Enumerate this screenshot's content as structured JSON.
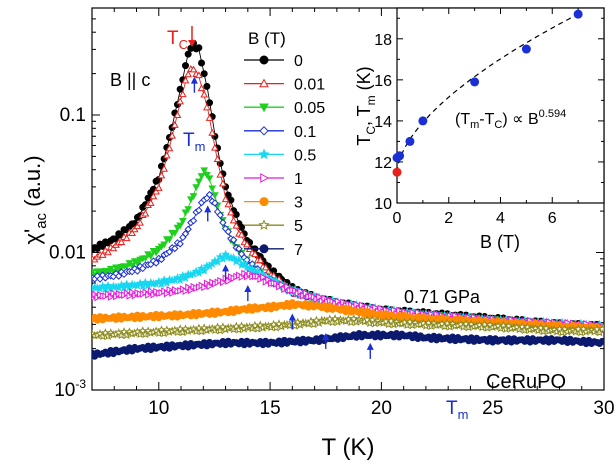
{
  "chart_data": [
    {
      "type": "scatter",
      "xlabel": "T (K)",
      "ylabel_main": "χ'",
      "ylabel_sub": "ac",
      "ylabel_unit": " (a.u.)",
      "yscale": "log",
      "xlim": [
        7,
        30
      ],
      "ylim": [
        0.001,
        0.6
      ],
      "x_ticks": [
        10,
        15,
        20,
        25,
        30
      ],
      "y_ticks": [
        {
          "value": 0.001,
          "base": "10",
          "exp": "-3"
        },
        {
          "value": 0.01,
          "label": "0.01"
        },
        {
          "value": 0.1,
          "label": "0.1"
        }
      ],
      "legend_title": "B (T)",
      "legend_placement": "top-center",
      "series": [
        {
          "name": "0",
          "color": "#000000",
          "marker": "circle-filled",
          "x": [
            7,
            8,
            9,
            10,
            10.5,
            11,
            11.3,
            11.5,
            11.8,
            12.2,
            12.6,
            13,
            13.5,
            14,
            15,
            16,
            17,
            18,
            20,
            22,
            25,
            28,
            30
          ],
          "y": [
            0.0105,
            0.0125,
            0.017,
            0.035,
            0.07,
            0.16,
            0.27,
            0.33,
            0.3,
            0.15,
            0.06,
            0.03,
            0.018,
            0.012,
            0.0075,
            0.0055,
            0.0047,
            0.0043,
            0.0038,
            0.0036,
            0.0033,
            0.003,
            0.0029
          ]
        },
        {
          "name": "0.01",
          "color": "#e8201c",
          "marker": "triangle-open",
          "x": [
            7,
            8,
            9,
            10,
            10.5,
            11,
            11.3,
            11.5,
            11.8,
            12.2,
            12.6,
            13,
            13.5,
            14,
            15,
            16,
            18,
            20,
            25,
            30
          ],
          "y": [
            0.0088,
            0.011,
            0.015,
            0.03,
            0.06,
            0.13,
            0.2,
            0.22,
            0.19,
            0.11,
            0.05,
            0.025,
            0.015,
            0.011,
            0.007,
            0.0052,
            0.0042,
            0.0037,
            0.0032,
            0.0028
          ]
        },
        {
          "name": "0.05",
          "color": "#1fd01f",
          "marker": "triangle-down-filled",
          "x": [
            7,
            8,
            9,
            10,
            11,
            11.5,
            11.9,
            12.1,
            12.4,
            12.8,
            13.3,
            14,
            15,
            16,
            18,
            20,
            25,
            30
          ],
          "y": [
            0.007,
            0.0075,
            0.0085,
            0.0105,
            0.016,
            0.025,
            0.036,
            0.04,
            0.03,
            0.018,
            0.012,
            0.0085,
            0.0062,
            0.0052,
            0.0042,
            0.0037,
            0.0032,
            0.0028
          ]
        },
        {
          "name": "0.1",
          "color": "#1a2fd6",
          "marker": "diamond-open",
          "x": [
            7,
            8,
            9,
            10,
            11,
            11.6,
            12,
            12.3,
            12.6,
            13,
            13.5,
            14,
            15,
            16,
            18,
            20,
            25,
            30
          ],
          "y": [
            0.0065,
            0.0068,
            0.0075,
            0.0088,
            0.012,
            0.018,
            0.024,
            0.026,
            0.021,
            0.015,
            0.011,
            0.0085,
            0.0063,
            0.0052,
            0.0042,
            0.0037,
            0.0032,
            0.0028
          ]
        },
        {
          "name": "0.5",
          "color": "#19d7f0",
          "marker": "star-filled",
          "x": [
            7,
            8,
            9,
            10,
            11,
            12,
            12.5,
            13,
            13.5,
            14,
            15,
            16,
            17,
            18,
            20,
            22,
            25,
            30
          ],
          "y": [
            0.0055,
            0.0056,
            0.0058,
            0.006,
            0.0065,
            0.0075,
            0.0085,
            0.0095,
            0.0088,
            0.0078,
            0.0063,
            0.0053,
            0.0047,
            0.0043,
            0.0038,
            0.0035,
            0.0032,
            0.0029
          ]
        },
        {
          "name": "1",
          "color": "#e51bd8",
          "marker": "triangle-right-open",
          "x": [
            7,
            8,
            9,
            10,
            11,
            12,
            13,
            13.5,
            14,
            14.5,
            15,
            16,
            17,
            18,
            20,
            22,
            25,
            30
          ],
          "y": [
            0.0048,
            0.0049,
            0.005,
            0.0051,
            0.0053,
            0.0057,
            0.0063,
            0.0067,
            0.0069,
            0.0066,
            0.0061,
            0.0053,
            0.0047,
            0.0043,
            0.0038,
            0.0035,
            0.0032,
            0.0029
          ]
        },
        {
          "name": "3",
          "color": "#ff8a00",
          "marker": "circle-filled",
          "x": [
            7,
            9,
            11,
            13,
            14,
            15,
            16,
            17,
            18,
            19,
            20,
            22,
            25,
            28,
            30
          ],
          "y": [
            0.0033,
            0.0034,
            0.0035,
            0.0037,
            0.0039,
            0.004,
            0.0042,
            0.0041,
            0.0039,
            0.0037,
            0.0035,
            0.0033,
            0.0031,
            0.0029,
            0.0028
          ]
        },
        {
          "name": "5",
          "color": "#8b8a1c",
          "marker": "star-open",
          "x": [
            7,
            9,
            11,
            13,
            15,
            16,
            17,
            17.5,
            18,
            19,
            20,
            22,
            25,
            28,
            30
          ],
          "y": [
            0.0025,
            0.0026,
            0.0027,
            0.0028,
            0.0029,
            0.003,
            0.0031,
            0.0032,
            0.0032,
            0.0032,
            0.0031,
            0.003,
            0.0029,
            0.0027,
            0.0027
          ]
        },
        {
          "name": "7",
          "color": "#0b1a6e",
          "marker": "circle-filled",
          "x": [
            7,
            9,
            11,
            13,
            15,
            17,
            18,
            19,
            20,
            21,
            22,
            25,
            28,
            30
          ],
          "y": [
            0.0018,
            0.002,
            0.0021,
            0.0022,
            0.0022,
            0.0023,
            0.0024,
            0.0025,
            0.0025,
            0.0025,
            0.0024,
            0.0023,
            0.0023,
            0.0022
          ]
        }
      ],
      "annotations": {
        "tc_label": "T",
        "tc_sub": "C",
        "tm_label": "T",
        "tm_sub": "m",
        "field_direction": "B || c",
        "pressure": "0.71 GPa",
        "compound": "CeRuPO",
        "tm_arrow_points": [
          [
            11.6,
            0.19
          ],
          [
            12.2,
            0.022
          ],
          [
            13.0,
            0.0082
          ],
          [
            14.0,
            0.0058
          ],
          [
            16.0,
            0.0036
          ],
          [
            17.5,
            0.0026
          ],
          [
            19.5,
            0.0022
          ]
        ]
      }
    },
    {
      "type": "scatter",
      "xlabel": "B (T)",
      "ylabel_parts": [
        "T",
        "C",
        ", T",
        "m",
        " (K)"
      ],
      "xlim": [
        0,
        8
      ],
      "ylim": [
        10,
        19.5
      ],
      "x_ticks": [
        0,
        2,
        4,
        6
      ],
      "y_ticks": [
        10,
        12,
        14,
        16,
        18
      ],
      "points": {
        "color": "#1a2fd6",
        "x": [
          0,
          0.05,
          0.1,
          0.5,
          1,
          3,
          5,
          7
        ],
        "y": [
          12.2,
          12.25,
          12.3,
          13.0,
          14.0,
          15.9,
          17.5,
          19.2
        ]
      },
      "tc_point": {
        "x": 0,
        "y": 11.5,
        "color": "#e8201c"
      },
      "fit_label_main": "(T",
      "fit_label_sub1": "m",
      "fit_label_mid": "-T",
      "fit_label_sub2": "C",
      "fit_label_end": ") ∝ B",
      "fit_label_exp": "0.594",
      "fit": {
        "formula": "Tm = Tc + a·B^0.594",
        "tc": 11.5,
        "exponent": 0.594
      }
    }
  ]
}
